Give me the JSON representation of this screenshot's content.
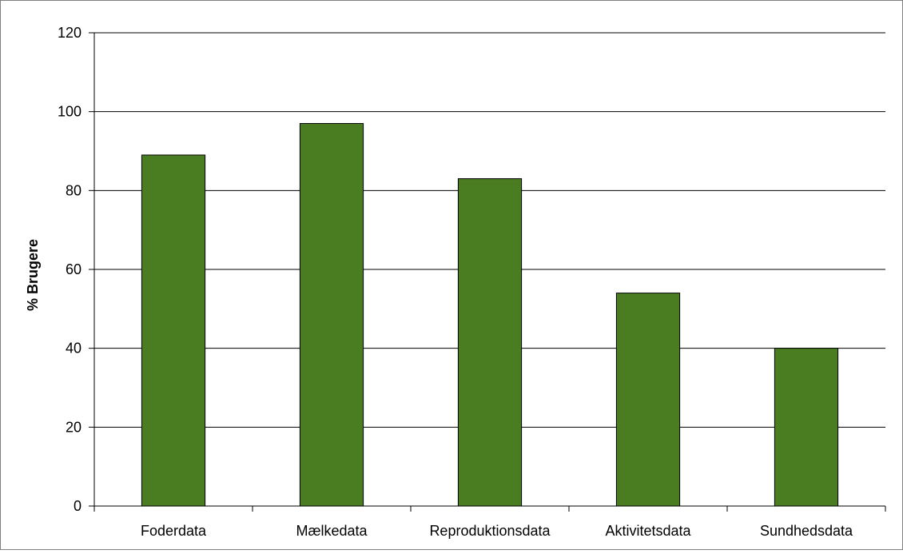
{
  "chart_data": {
    "type": "bar",
    "title": "",
    "xlabel": "",
    "ylabel": "% Brugere",
    "categories": [
      "Foderdata",
      "Mælkedata",
      "Reproduktionsdata",
      "Aktivitetsdata",
      "Sundhedsdata"
    ],
    "values": [
      89,
      97,
      83,
      54,
      40
    ],
    "ylim": [
      0,
      120
    ],
    "yticks": [
      "0",
      "20",
      "40",
      "60",
      "80",
      "100",
      "120"
    ],
    "grid": true,
    "legend": "none",
    "bar_color": "#4a7d22",
    "bar_edge_color": "#000000",
    "grid_color": "#000000",
    "frame_color": "#7f7f7f"
  }
}
